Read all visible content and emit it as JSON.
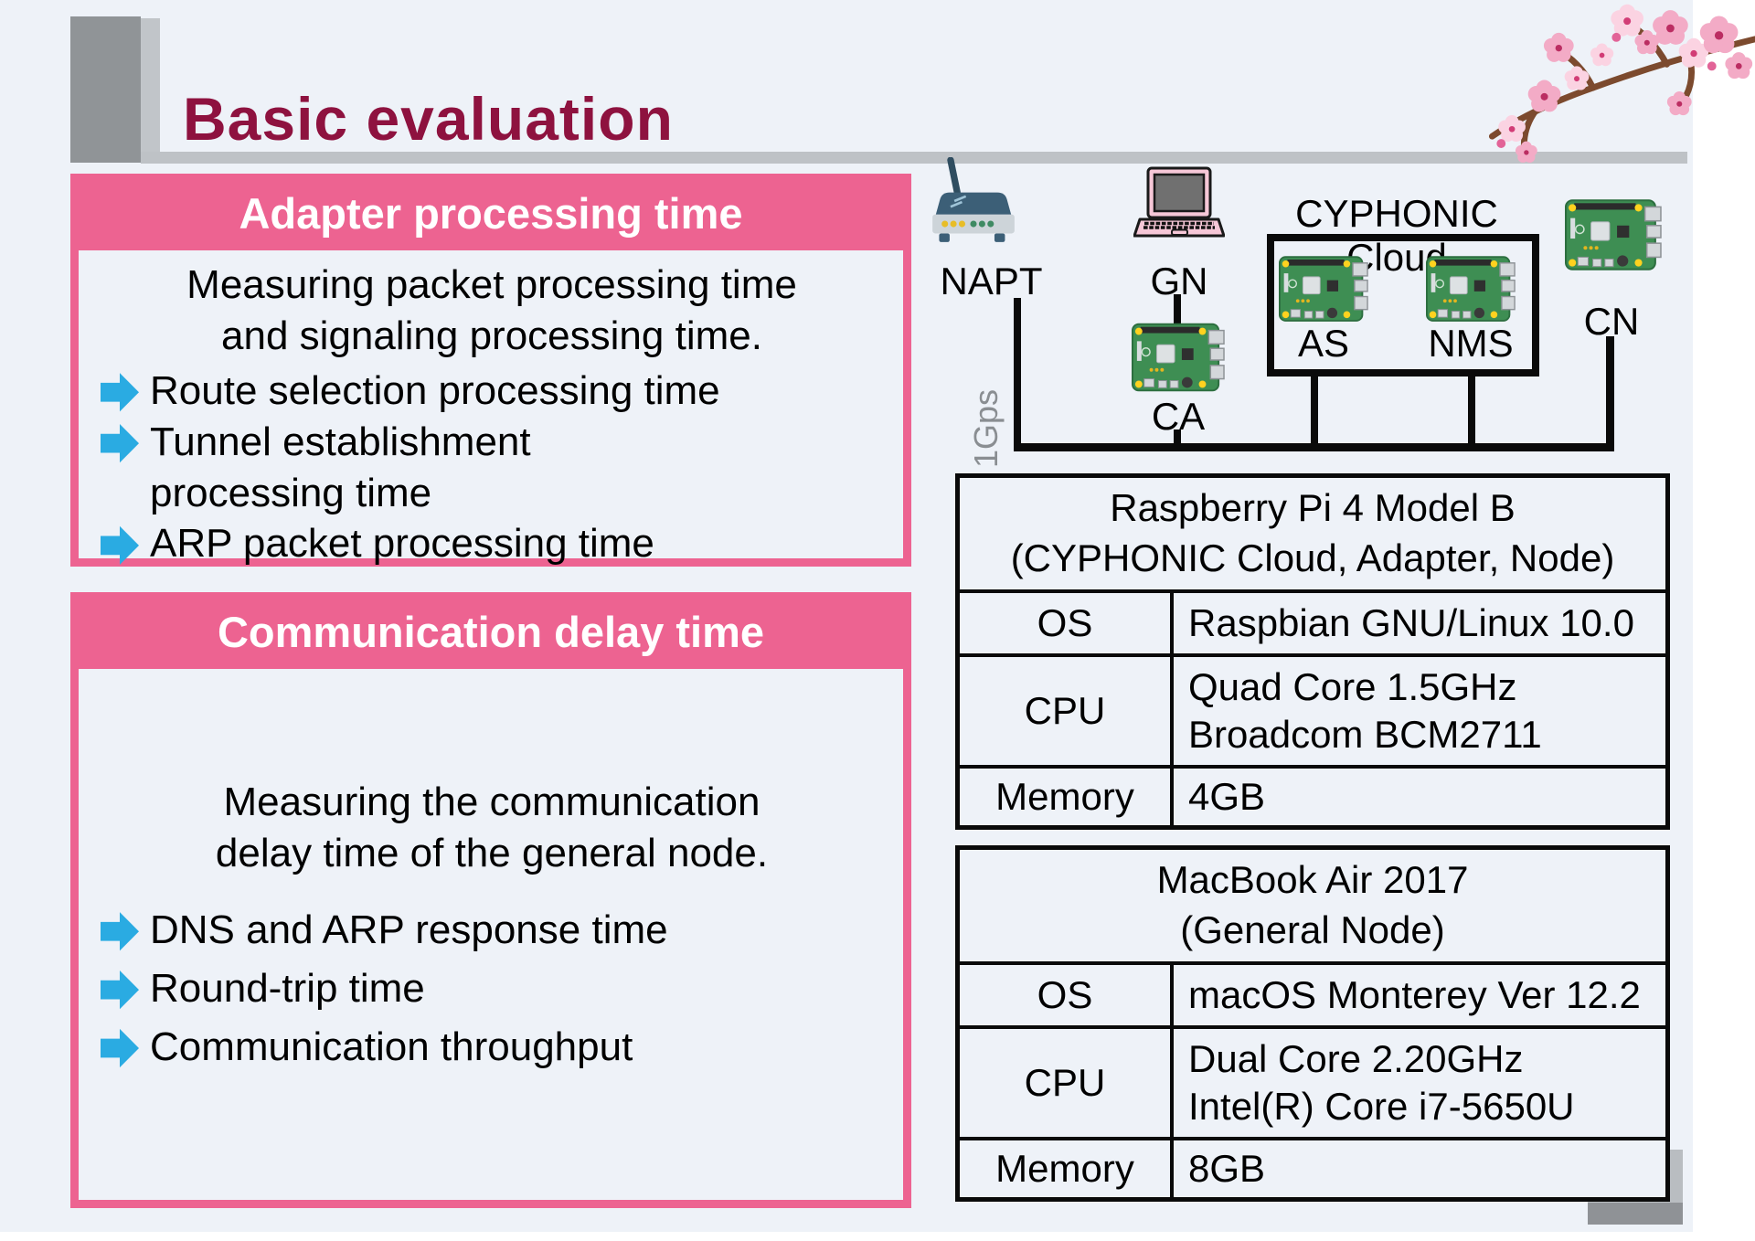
{
  "slide": {
    "title": "Basic evaluation"
  },
  "panels": [
    {
      "header": "Adapter processing time",
      "intro": "Measuring packet processing time\nand signaling processing time.",
      "bullets": [
        "Route selection processing time",
        "Tunnel establishment\nprocessing time",
        "ARP packet processing time"
      ]
    },
    {
      "header": "Communication delay time",
      "intro": "Measuring the communication\ndelay time of the general node.",
      "bullets": [
        "DNS and ARP response time",
        "Round-trip time",
        "Communication throughput"
      ]
    }
  ],
  "diagram": {
    "labels": {
      "napt": "NAPT",
      "gn": "GN",
      "ca": "CA",
      "as": "AS",
      "nms": "NMS",
      "cn": "CN"
    },
    "cloud_label": "CYPHONIC Cloud",
    "link_speed": "1Gps"
  },
  "tables": [
    {
      "header": "Raspberry Pi 4 Model B\n(CYPHONIC Cloud, Adapter, Node)",
      "rows": [
        {
          "label": "OS",
          "value": "Raspbian GNU/Linux 10.0"
        },
        {
          "label": "CPU",
          "value": "Quad Core 1.5GHz\nBroadcom BCM2711"
        },
        {
          "label": "Memory",
          "value": "4GB"
        }
      ]
    },
    {
      "header": "MacBook Air 2017\n(General Node)",
      "rows": [
        {
          "label": "OS",
          "value": "macOS Monterey Ver 12.2"
        },
        {
          "label": "CPU",
          "value": "Dual Core 2.20GHz\nIntel(R) Core i7-5650U"
        },
        {
          "label": "Memory",
          "value": "8GB"
        }
      ]
    }
  ],
  "colors": {
    "accent_pink": "#ed6391",
    "arrow_cyan": "#2aabe2",
    "title_maroon": "#8e123f"
  }
}
